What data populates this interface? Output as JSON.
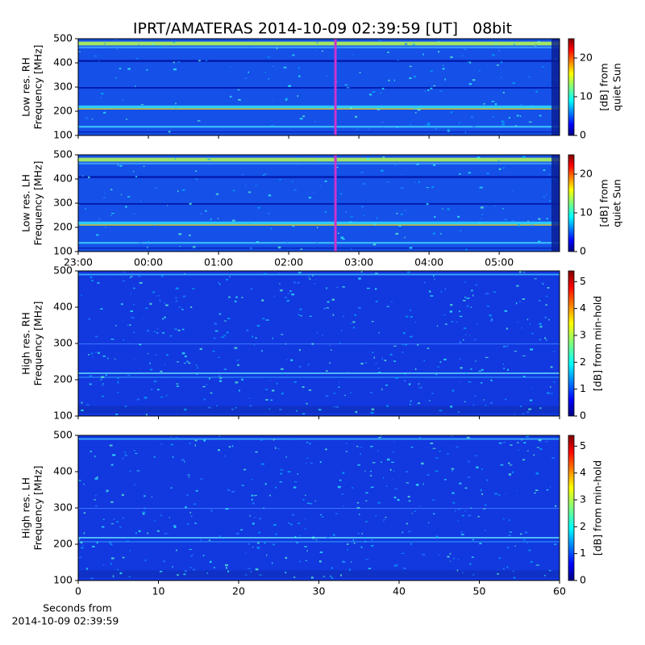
{
  "title": "IPRT/AMATERAS 2014-10-09 02:39:59 [UT]   08bit",
  "chart_data": [
    {
      "type": "heatmap",
      "ylabel": [
        "Low res. RH",
        "Frequency [MHz]"
      ],
      "ylim": [
        100,
        500
      ],
      "yticks": [
        100,
        200,
        300,
        400,
        500
      ],
      "xlim": [
        23,
        29.86
      ],
      "sharex": 1,
      "marker": {
        "value": 26.6664,
        "color": "#cc33cc"
      },
      "colorbar": {
        "label": [
          "[dB] from",
          "quiet Sun"
        ],
        "lim": [
          0,
          25
        ],
        "ticks": [
          0,
          10,
          20
        ],
        "colormap": "jet"
      }
    },
    {
      "type": "heatmap",
      "ylabel": [
        "Low res. LH",
        "Frequency [MHz]"
      ],
      "ylim": [
        100,
        500
      ],
      "yticks": [
        100,
        200,
        300,
        400,
        500
      ],
      "xlim": [
        23,
        29.86
      ],
      "xticks": [
        {
          "value": 23,
          "label": "23:00"
        },
        {
          "value": 24,
          "label": "00:00"
        },
        {
          "value": 25,
          "label": "01:00"
        },
        {
          "value": 26,
          "label": "02:00"
        },
        {
          "value": 27,
          "label": "03:00"
        },
        {
          "value": 28,
          "label": "04:00"
        },
        {
          "value": 29,
          "label": "05:00"
        }
      ],
      "marker": {
        "value": 26.6664,
        "color": "#cc33cc"
      },
      "colorbar": {
        "label": [
          "[dB] from",
          "quiet Sun"
        ],
        "lim": [
          0,
          25
        ],
        "ticks": [
          0,
          10,
          20
        ],
        "colormap": "jet"
      }
    },
    {
      "type": "heatmap",
      "ylabel": [
        "High res. RH",
        "Frequency [MHz]"
      ],
      "ylim": [
        100,
        500
      ],
      "yticks": [
        100,
        200,
        300,
        400,
        500
      ],
      "xlim": [
        0,
        60
      ],
      "sharex": 3,
      "colorbar": {
        "label": [
          "[dB] from min-hold"
        ],
        "lim": [
          0,
          5.4
        ],
        "ticks": [
          0,
          1,
          2,
          3,
          4,
          5
        ],
        "colormap": "jet"
      }
    },
    {
      "type": "heatmap",
      "ylabel": [
        "High res. LH",
        "Frequency [MHz]"
      ],
      "ylim": [
        100,
        500
      ],
      "yticks": [
        100,
        200,
        300,
        400,
        500
      ],
      "xlim": [
        0,
        60
      ],
      "xticks": [
        0,
        10,
        20,
        30,
        40,
        50,
        60
      ],
      "xlabel": [
        "Seconds from",
        "2014-10-09 02:39:59"
      ],
      "colorbar": {
        "label": [
          "[dB] from min-hold"
        ],
        "lim": [
          0,
          5.4
        ],
        "ticks": [
          0,
          1,
          2,
          3,
          4,
          5
        ],
        "colormap": "jet"
      }
    }
  ]
}
